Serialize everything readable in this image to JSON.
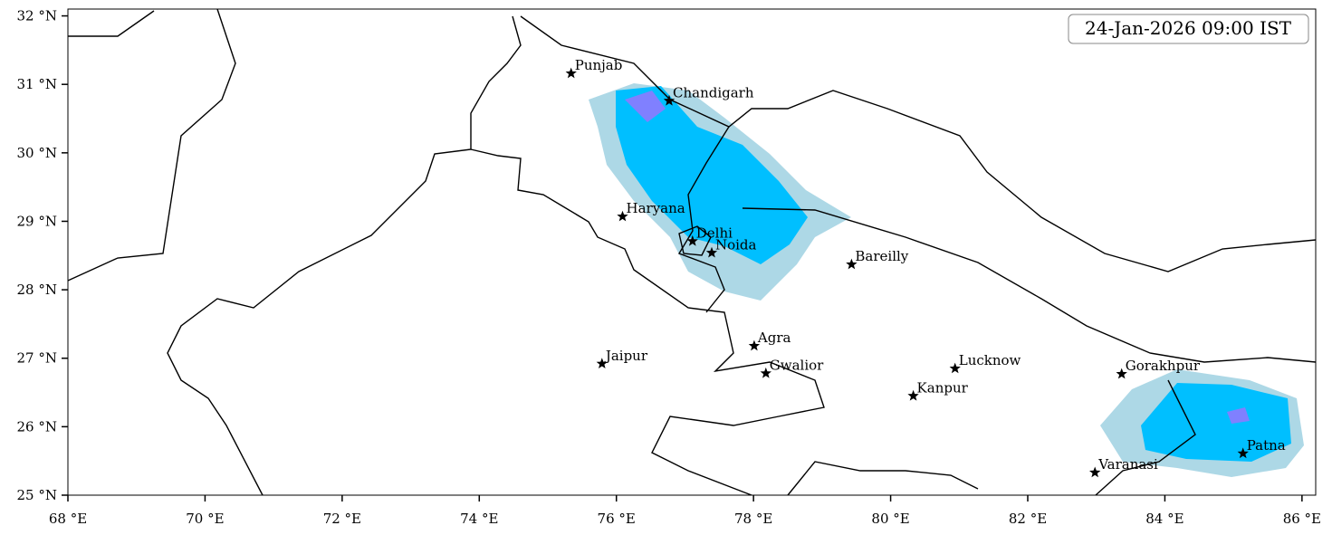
{
  "map": {
    "timestamp": "24-Jan-2026 09:00 IST",
    "xlim": [
      68,
      86.2
    ],
    "ylim": [
      25,
      32.1
    ],
    "xticks": [
      {
        "value": 68,
        "label": "68 °E"
      },
      {
        "value": 70,
        "label": "70 °E"
      },
      {
        "value": 72,
        "label": "72 °E"
      },
      {
        "value": 74,
        "label": "74 °E"
      },
      {
        "value": 76,
        "label": "76 °E"
      },
      {
        "value": 78,
        "label": "78 °E"
      },
      {
        "value": 80,
        "label": "80 °E"
      },
      {
        "value": 82,
        "label": "82 °E"
      },
      {
        "value": 84,
        "label": "84 °E"
      },
      {
        "value": 86,
        "label": "86 °E"
      }
    ],
    "yticks": [
      {
        "value": 25,
        "label": "25 °N"
      },
      {
        "value": 26,
        "label": "26 °N"
      },
      {
        "value": 27,
        "label": "27 °N"
      },
      {
        "value": 28,
        "label": "28 °N"
      },
      {
        "value": 29,
        "label": "29 °N"
      },
      {
        "value": 30,
        "label": "30 °N"
      },
      {
        "value": 31,
        "label": "31 °N"
      },
      {
        "value": 32,
        "label": "32 °N"
      }
    ],
    "cities": [
      {
        "name": "Punjab",
        "lon": 75.34,
        "lat": 31.16
      },
      {
        "name": "Chandigarh",
        "lon": 76.77,
        "lat": 30.76
      },
      {
        "name": "Haryana",
        "lon": 76.09,
        "lat": 29.07
      },
      {
        "name": "Delhi",
        "lon": 77.11,
        "lat": 28.71
      },
      {
        "name": "Noida",
        "lon": 77.39,
        "lat": 28.54
      },
      {
        "name": "Bareilly",
        "lon": 79.43,
        "lat": 28.37
      },
      {
        "name": "Agra",
        "lon": 78.01,
        "lat": 27.18
      },
      {
        "name": "Jaipur",
        "lon": 75.79,
        "lat": 26.92
      },
      {
        "name": "Gwalior",
        "lon": 78.18,
        "lat": 26.78
      },
      {
        "name": "Lucknow",
        "lon": 80.94,
        "lat": 26.85
      },
      {
        "name": "Kanpur",
        "lon": 80.33,
        "lat": 26.45
      },
      {
        "name": "Gorakhpur",
        "lon": 83.37,
        "lat": 26.77
      },
      {
        "name": "Varanasi",
        "lon": 82.98,
        "lat": 25.33
      },
      {
        "name": "Patna",
        "lon": 85.14,
        "lat": 25.61
      }
    ]
  }
}
